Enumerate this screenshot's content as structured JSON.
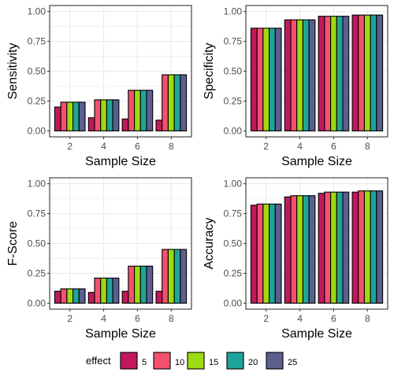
{
  "chart_data": [
    {
      "type": "bar",
      "ylabel": "Sensitivity",
      "xlabel": "Sample Size",
      "categories": [
        "2",
        "4",
        "6",
        "8"
      ],
      "ylim": [
        0,
        1
      ],
      "yticks": [
        "0.00",
        "0.25",
        "0.50",
        "0.75",
        "1.00"
      ],
      "series": [
        {
          "name": "5",
          "values": [
            0.2,
            0.11,
            0.1,
            0.09
          ]
        },
        {
          "name": "10",
          "values": [
            0.24,
            0.26,
            0.34,
            0.47
          ]
        },
        {
          "name": "15",
          "values": [
            0.24,
            0.26,
            0.34,
            0.47
          ]
        },
        {
          "name": "20",
          "values": [
            0.24,
            0.26,
            0.34,
            0.47
          ]
        },
        {
          "name": "25",
          "values": [
            0.24,
            0.26,
            0.34,
            0.47
          ]
        }
      ]
    },
    {
      "type": "bar",
      "ylabel": "Specificity",
      "xlabel": "Sample Size",
      "categories": [
        "2",
        "4",
        "6",
        "8"
      ],
      "ylim": [
        0,
        1
      ],
      "yticks": [
        "0.00",
        "0.25",
        "0.50",
        "0.75",
        "1.00"
      ],
      "series": [
        {
          "name": "5",
          "values": [
            0.86,
            0.93,
            0.96,
            0.97
          ]
        },
        {
          "name": "10",
          "values": [
            0.86,
            0.93,
            0.96,
            0.97
          ]
        },
        {
          "name": "15",
          "values": [
            0.86,
            0.93,
            0.96,
            0.97
          ]
        },
        {
          "name": "20",
          "values": [
            0.86,
            0.93,
            0.96,
            0.97
          ]
        },
        {
          "name": "25",
          "values": [
            0.86,
            0.93,
            0.96,
            0.97
          ]
        }
      ]
    },
    {
      "type": "bar",
      "ylabel": "F-Score",
      "xlabel": "Sample Size",
      "categories": [
        "2",
        "4",
        "6",
        "8"
      ],
      "ylim": [
        0,
        1
      ],
      "yticks": [
        "0.00",
        "0.25",
        "0.50",
        "0.75",
        "1.00"
      ],
      "series": [
        {
          "name": "5",
          "values": [
            0.1,
            0.09,
            0.1,
            0.1
          ]
        },
        {
          "name": "10",
          "values": [
            0.12,
            0.21,
            0.31,
            0.45
          ]
        },
        {
          "name": "15",
          "values": [
            0.12,
            0.21,
            0.31,
            0.45
          ]
        },
        {
          "name": "20",
          "values": [
            0.12,
            0.21,
            0.31,
            0.45
          ]
        },
        {
          "name": "25",
          "values": [
            0.12,
            0.21,
            0.31,
            0.45
          ]
        }
      ]
    },
    {
      "type": "bar",
      "ylabel": "Accuracy",
      "xlabel": "Sample Size",
      "categories": [
        "2",
        "4",
        "6",
        "8"
      ],
      "ylim": [
        0,
        1
      ],
      "yticks": [
        "0.00",
        "0.25",
        "0.50",
        "0.75",
        "1.00"
      ],
      "series": [
        {
          "name": "5",
          "values": [
            0.82,
            0.89,
            0.92,
            0.93
          ]
        },
        {
          "name": "10",
          "values": [
            0.83,
            0.9,
            0.93,
            0.94
          ]
        },
        {
          "name": "15",
          "values": [
            0.83,
            0.9,
            0.93,
            0.94
          ]
        },
        {
          "name": "20",
          "values": [
            0.83,
            0.9,
            0.93,
            0.94
          ]
        },
        {
          "name": "25",
          "values": [
            0.83,
            0.9,
            0.93,
            0.94
          ]
        }
      ]
    }
  ],
  "legend": {
    "title": "effect",
    "placement": "bottom",
    "entries": [
      {
        "label": "5",
        "color": "#C2185B"
      },
      {
        "label": "10",
        "color": "#F4506E"
      },
      {
        "label": "15",
        "color": "#9BDB0F"
      },
      {
        "label": "20",
        "color": "#20A39A"
      },
      {
        "label": "25",
        "color": "#5B5E8E"
      }
    ]
  },
  "style": {
    "panel_border": "#333333",
    "gridline": "#EBEBEB",
    "bar_outline": "#000000",
    "axis_text": "#4D4D4D"
  }
}
